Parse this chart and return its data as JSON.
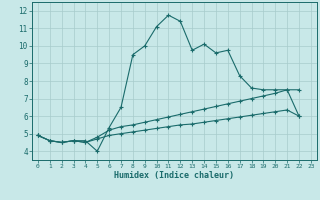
{
  "xlabel": "Humidex (Indice chaleur)",
  "xlim": [
    -0.5,
    23.5
  ],
  "ylim": [
    3.5,
    12.5
  ],
  "xticks": [
    0,
    1,
    2,
    3,
    4,
    5,
    6,
    7,
    8,
    9,
    10,
    11,
    12,
    13,
    14,
    15,
    16,
    17,
    18,
    19,
    20,
    21,
    22,
    23
  ],
  "yticks": [
    4,
    5,
    6,
    7,
    8,
    9,
    10,
    11,
    12
  ],
  "bg_color": "#c8e8e8",
  "grid_color": "#a8cccc",
  "line_color": "#1a6b6b",
  "line1_x": [
    0,
    1,
    2,
    3,
    4,
    5,
    6,
    7,
    8,
    9,
    10,
    11,
    12,
    13,
    14,
    15,
    16,
    17,
    18,
    19,
    20,
    21,
    22
  ],
  "line1_y": [
    4.9,
    4.6,
    4.5,
    4.6,
    4.6,
    4.0,
    5.35,
    6.5,
    9.5,
    10.0,
    11.1,
    11.75,
    11.4,
    9.75,
    10.1,
    9.6,
    9.75,
    8.3,
    7.6,
    7.5,
    7.5,
    7.5,
    6.0
  ],
  "line2_x": [
    0,
    1,
    2,
    3,
    4,
    5,
    6,
    7,
    8,
    9,
    10,
    11,
    12,
    13,
    14,
    15,
    16,
    17,
    18,
    19,
    20,
    21,
    22
  ],
  "line2_y": [
    4.9,
    4.6,
    4.5,
    4.6,
    4.5,
    4.8,
    5.2,
    5.4,
    5.5,
    5.65,
    5.8,
    5.95,
    6.1,
    6.25,
    6.4,
    6.55,
    6.7,
    6.85,
    7.0,
    7.15,
    7.3,
    7.5,
    7.5
  ],
  "line3_x": [
    0,
    1,
    2,
    3,
    4,
    5,
    6,
    7,
    8,
    9,
    10,
    11,
    12,
    13,
    14,
    15,
    16,
    17,
    18,
    19,
    20,
    21,
    22
  ],
  "line3_y": [
    4.9,
    4.6,
    4.5,
    4.6,
    4.5,
    4.7,
    4.9,
    5.0,
    5.1,
    5.2,
    5.3,
    5.4,
    5.5,
    5.55,
    5.65,
    5.75,
    5.85,
    5.95,
    6.05,
    6.15,
    6.25,
    6.35,
    6.0
  ]
}
